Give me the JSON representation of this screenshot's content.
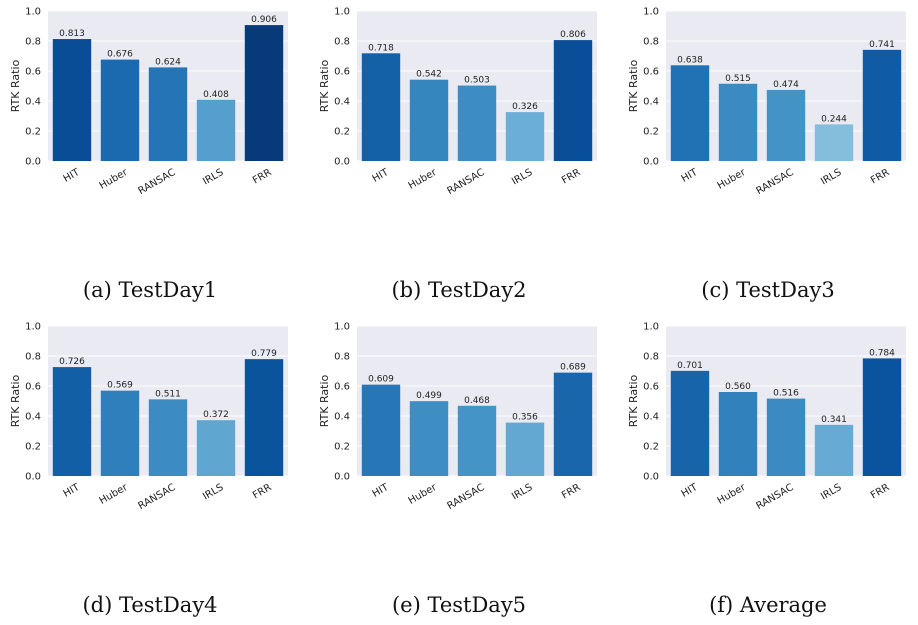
{
  "chart_data": [
    {
      "type": "bar",
      "caption": "(a) TestDay1",
      "ylabel": "RTK Ratio",
      "ylim": [
        0,
        1.0
      ],
      "yticks": [
        "0.0",
        "0.2",
        "0.4",
        "0.6",
        "0.8",
        "1.0"
      ],
      "categories": [
        "HIT",
        "Huber",
        "RANSAC",
        "IRLS",
        "FRR"
      ],
      "values": [
        0.813,
        0.676,
        0.624,
        0.408,
        0.906
      ],
      "value_labels": [
        "0.813",
        "0.676",
        "0.624",
        "0.408",
        "0.906"
      ],
      "grid": true
    },
    {
      "type": "bar",
      "caption": "(b) TestDay2",
      "ylabel": "RTK Ratio",
      "ylim": [
        0,
        1.0
      ],
      "yticks": [
        "0.0",
        "0.2",
        "0.4",
        "0.6",
        "0.8",
        "1.0"
      ],
      "categories": [
        "HIT",
        "Huber",
        "RANSAC",
        "IRLS",
        "FRR"
      ],
      "values": [
        0.718,
        0.542,
        0.503,
        0.326,
        0.806
      ],
      "value_labels": [
        "0.718",
        "0.542",
        "0.503",
        "0.326",
        "0.806"
      ],
      "grid": true
    },
    {
      "type": "bar",
      "caption": "(c) TestDay3",
      "ylabel": "RTK Ratio",
      "ylim": [
        0,
        1.0
      ],
      "yticks": [
        "0.0",
        "0.2",
        "0.4",
        "0.6",
        "0.8",
        "1.0"
      ],
      "categories": [
        "HIT",
        "Huber",
        "RANSAC",
        "IRLS",
        "FRR"
      ],
      "values": [
        0.638,
        0.515,
        0.474,
        0.244,
        0.741
      ],
      "value_labels": [
        "0.638",
        "0.515",
        "0.474",
        "0.244",
        "0.741"
      ],
      "grid": true
    },
    {
      "type": "bar",
      "caption": "(d) TestDay4",
      "ylabel": "RTK Ratio",
      "ylim": [
        0,
        1.0
      ],
      "yticks": [
        "0.0",
        "0.2",
        "0.4",
        "0.6",
        "0.8",
        "1.0"
      ],
      "categories": [
        "HIT",
        "Huber",
        "RANSAC",
        "IRLS",
        "FRR"
      ],
      "values": [
        0.726,
        0.569,
        0.511,
        0.372,
        0.779
      ],
      "value_labels": [
        "0.726",
        "0.569",
        "0.511",
        "0.372",
        "0.779"
      ],
      "grid": true
    },
    {
      "type": "bar",
      "caption": "(e) TestDay5",
      "ylabel": "RTK Ratio",
      "ylim": [
        0,
        1.0
      ],
      "yticks": [
        "0.0",
        "0.2",
        "0.4",
        "0.6",
        "0.8",
        "1.0"
      ],
      "categories": [
        "HIT",
        "Huber",
        "RANSAC",
        "IRLS",
        "FRR"
      ],
      "values": [
        0.609,
        0.499,
        0.468,
        0.356,
        0.689
      ],
      "value_labels": [
        "0.609",
        "0.499",
        "0.468",
        "0.356",
        "0.689"
      ],
      "grid": true
    },
    {
      "type": "bar",
      "caption": "(f) Average",
      "ylabel": "RTK Ratio",
      "ylim": [
        0,
        1.0
      ],
      "yticks": [
        "0.0",
        "0.2",
        "0.4",
        "0.6",
        "0.8",
        "1.0"
      ],
      "categories": [
        "HIT",
        "Huber",
        "RANSAC",
        "IRLS",
        "FRR"
      ],
      "values": [
        0.701,
        0.56,
        0.516,
        0.341,
        0.784
      ],
      "value_labels": [
        "0.701",
        "0.560",
        "0.516",
        "0.341",
        "0.784"
      ],
      "grid": true
    }
  ],
  "colors": {
    "plot_bg": "#eaeaf2",
    "grid": "#ffffff",
    "bar_dark": "#08306b",
    "bar_light": "#c6dbef"
  }
}
